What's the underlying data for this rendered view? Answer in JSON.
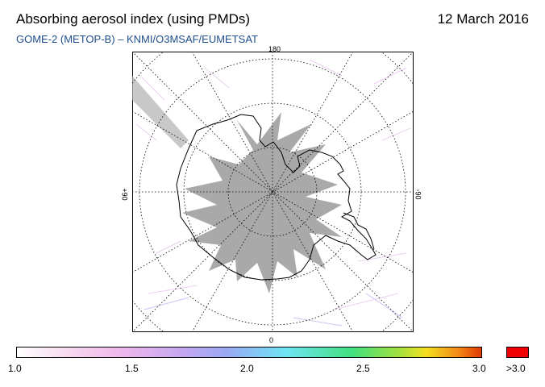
{
  "header": {
    "title": "Absorbing aerosol index (using PMDs)",
    "date": "12 March 2016",
    "subtitle": "GOME-2 (METOP-B)  –   KNMI/O3MSAF/EUMETSAT"
  },
  "map": {
    "projection": "south-polar-stereographic",
    "lon_labels": {
      "top": "180",
      "bottom": "0",
      "left": "+90",
      "right": "-90"
    },
    "land_outline_color": "#000000",
    "no_data_color": "#a9a9a9",
    "graticule": "dotted"
  },
  "colorbar": {
    "ticks": [
      "1.0",
      "1.5",
      "2.0",
      "2.5",
      "3.0"
    ],
    "over_label": ">3.0",
    "over_color": "#f00000",
    "range": [
      1.0,
      3.0
    ]
  }
}
